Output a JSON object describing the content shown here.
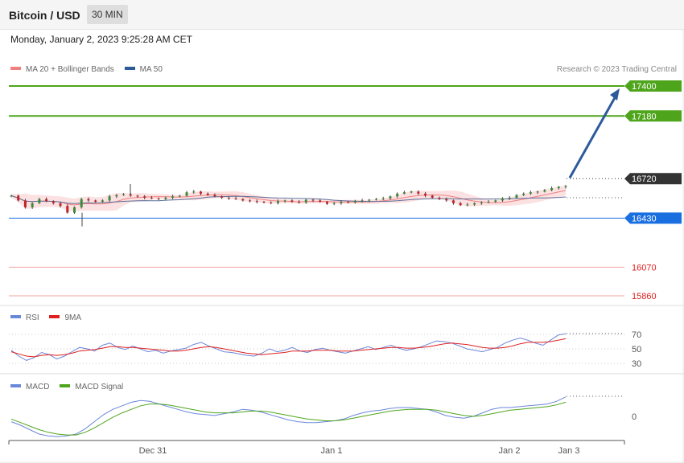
{
  "header": {
    "title": "Bitcoin / USD",
    "timeframe": "30 MIN"
  },
  "datetime": "Monday, January 2, 2023 9:25:28 AM CET",
  "credit": "Research © 2023 Trading Central",
  "legends": {
    "price": [
      {
        "label": "MA 20 + Bollinger Bands",
        "color": "#f08080"
      },
      {
        "label": "MA 50",
        "color": "#2d5a9b"
      }
    ],
    "rsi": [
      {
        "label": "RSI",
        "color": "#6b87d9"
      },
      {
        "label": "9MA",
        "color": "#e02020"
      }
    ],
    "macd": [
      {
        "label": "MACD",
        "color": "#6b87d9"
      },
      {
        "label": "MACD Signal",
        "color": "#4ea51c"
      }
    ]
  },
  "chart_data": [
    {
      "type": "candlestick",
      "panel": "price",
      "x_ticks": [
        "Dec 31",
        "Jan 1",
        "Jan 2",
        "Jan 3"
      ],
      "ylim": [
        15800,
        17460
      ],
      "levels": [
        {
          "value": 17400,
          "label": "17400",
          "kind": "resistance",
          "color": "#4ea51c"
        },
        {
          "value": 17180,
          "label": "17180",
          "kind": "resistance",
          "color": "#4ea51c"
        },
        {
          "value": 16720,
          "label": "16720",
          "kind": "last",
          "color": "#333333"
        },
        {
          "value": 16430,
          "label": "16430",
          "kind": "pivot",
          "color": "#1a6fe0"
        },
        {
          "value": 16070,
          "label": "16070",
          "kind": "support",
          "color": "#e84a4a"
        },
        {
          "value": 15860,
          "label": "15860",
          "kind": "support",
          "color": "#e84a4a"
        }
      ],
      "price_path": [
        16595,
        16560,
        16510,
        16540,
        16570,
        16555,
        16540,
        16520,
        16470,
        16510,
        16570,
        16560,
        16550,
        16560,
        16590,
        16600,
        16605,
        16595,
        16590,
        16580,
        16575,
        16570,
        16580,
        16590,
        16595,
        16620,
        16625,
        16610,
        16600,
        16590,
        16580,
        16575,
        16570,
        16560,
        16555,
        16550,
        16545,
        16540,
        16555,
        16560,
        16550,
        16545,
        16565,
        16560,
        16550,
        16535,
        16540,
        16550,
        16545,
        16555,
        16560,
        16565,
        16570,
        16575,
        16590,
        16610,
        16620,
        16625,
        16610,
        16595,
        16580,
        16570,
        16560,
        16540,
        16525,
        16530,
        16540,
        16545,
        16550,
        16560,
        16575,
        16580,
        16600,
        16610,
        16620,
        16625,
        16635,
        16650,
        16660,
        16665
      ],
      "forecast": {
        "from": 16720,
        "to": 17400
      }
    },
    {
      "type": "line",
      "panel": "rsi",
      "ylim": [
        20,
        80
      ],
      "ticks": [
        70,
        50,
        30
      ],
      "series": [
        {
          "name": "RSI",
          "values": [
            48,
            40,
            34,
            38,
            45,
            42,
            36,
            40,
            46,
            52,
            50,
            47,
            55,
            58,
            52,
            49,
            54,
            50,
            46,
            48,
            44,
            47,
            49,
            51,
            56,
            59,
            54,
            50,
            46,
            45,
            43,
            41,
            40,
            44,
            50,
            46,
            48,
            52,
            47,
            45,
            49,
            51,
            48,
            46,
            44,
            47,
            50,
            53,
            49,
            52,
            55,
            51,
            48,
            50,
            53,
            57,
            61,
            60,
            58,
            54,
            50,
            48,
            46,
            49,
            52,
            58,
            62,
            65,
            62,
            58,
            55,
            62,
            69,
            71
          ]
        },
        {
          "name": "9MA",
          "values": [
            46,
            43,
            40,
            39,
            41,
            42,
            41,
            42,
            44,
            47,
            48,
            49,
            51,
            53,
            53,
            52,
            52,
            51,
            50,
            49,
            48,
            47,
            47,
            48,
            50,
            52,
            53,
            52,
            50,
            48,
            46,
            44,
            43,
            42,
            43,
            44,
            45,
            47,
            47,
            47,
            48,
            48,
            48,
            47,
            47,
            47,
            48,
            49,
            50,
            51,
            52,
            52,
            51,
            51,
            52,
            53,
            55,
            57,
            58,
            57,
            56,
            54,
            52,
            51,
            51,
            52,
            54,
            57,
            59,
            59,
            59,
            60,
            62,
            64
          ]
        }
      ]
    },
    {
      "type": "line",
      "panel": "macd",
      "ticks": [
        0
      ],
      "series": [
        {
          "name": "MACD",
          "values": [
            -6,
            -10,
            -15,
            -20,
            -22,
            -23,
            -22,
            -20,
            -14,
            -6,
            2,
            8,
            12,
            16,
            18,
            17,
            14,
            11,
            8,
            5,
            3,
            2,
            1,
            3,
            5,
            8,
            7,
            5,
            2,
            -1,
            -4,
            -6,
            -7,
            -7,
            -6,
            -5,
            -3,
            1,
            4,
            6,
            7,
            9,
            10,
            10,
            9,
            8,
            5,
            1,
            -1,
            -2,
            0,
            4,
            8,
            10,
            10,
            11,
            12,
            13,
            14,
            17,
            22
          ]
        },
        {
          "name": "MACD Signal",
          "values": [
            -3,
            -7,
            -11,
            -15,
            -18,
            -20,
            -21,
            -21,
            -18,
            -13,
            -7,
            -1,
            4,
            8,
            12,
            14,
            14,
            13,
            11,
            9,
            7,
            5,
            4,
            4,
            4,
            5,
            6,
            6,
            5,
            3,
            1,
            -1,
            -3,
            -4,
            -5,
            -5,
            -4,
            -2,
            0,
            2,
            4,
            6,
            7,
            8,
            8,
            8,
            7,
            5,
            3,
            1,
            0,
            1,
            3,
            5,
            7,
            8,
            9,
            10,
            11,
            13,
            16
          ]
        }
      ]
    }
  ]
}
